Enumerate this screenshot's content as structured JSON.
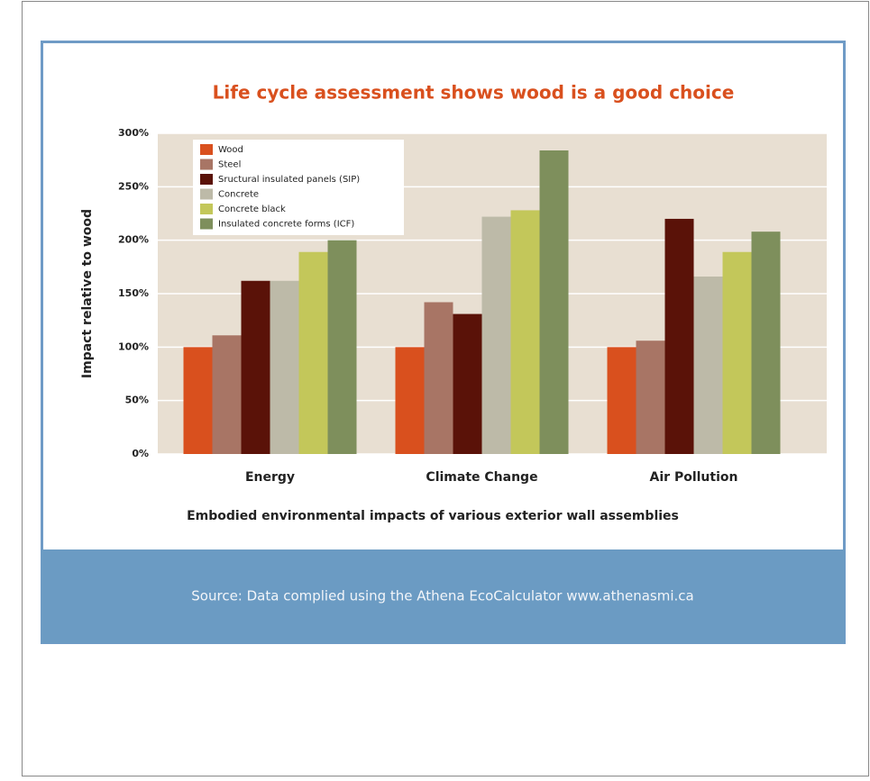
{
  "chart_data": {
    "type": "bar",
    "title": "Life cycle assessment shows wood is a good choice",
    "xlabel": "Embodied environmental impacts of various exterior wall assemblies",
    "ylabel": "Impact relative to wood",
    "categories": [
      "Energy",
      "Climate Change",
      "Air Pollution"
    ],
    "series": [
      {
        "name": "Wood",
        "color": "#d9501e",
        "values": [
          100,
          100,
          100
        ]
      },
      {
        "name": "Steel",
        "color": "#a87565",
        "values": [
          111,
          142,
          106
        ]
      },
      {
        "name": "Sructural insulated panels (SIP)",
        "color": "#5a1208",
        "values": [
          162,
          131,
          220
        ]
      },
      {
        "name": "Concrete",
        "color": "#bdbaa8",
        "values": [
          162,
          222,
          166
        ]
      },
      {
        "name": "Concrete black",
        "color": "#c3c75a",
        "values": [
          189,
          228,
          189
        ]
      },
      {
        "name": "Insulated concrete forms (ICF)",
        "color": "#7e8f5c",
        "values": [
          200,
          284,
          208
        ]
      }
    ],
    "ylim": [
      0,
      300
    ],
    "yticks": [
      {
        "value": 0,
        "label": "0%"
      },
      {
        "value": 50,
        "label": "50%"
      },
      {
        "value": 100,
        "label": "100%"
      },
      {
        "value": 150,
        "label": "150%"
      },
      {
        "value": 200,
        "label": "200%"
      },
      {
        "value": 250,
        "label": "250%"
      },
      {
        "value": 300,
        "label": "300%"
      }
    ],
    "grid": true,
    "legend": "upper left"
  },
  "footer": {
    "source": "Source: Data complied using the Athena EcoCalculator www.athenasmi.ca"
  }
}
